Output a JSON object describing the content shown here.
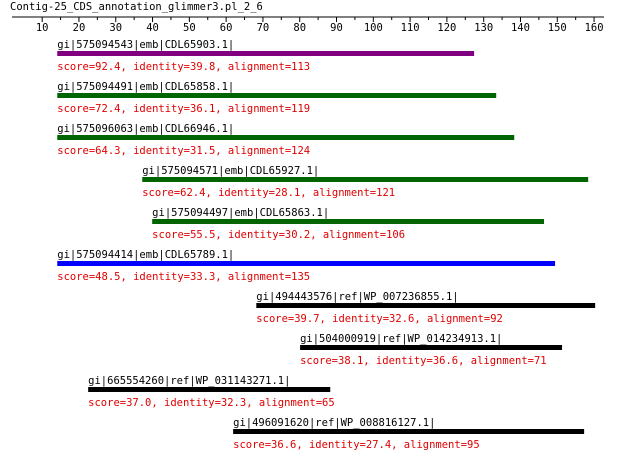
{
  "chart_data": {
    "type": "alignment",
    "title": "Contig-25_CDS_annotation_glimmer3.pl_2_6",
    "xlim": [
      1.8,
      162.7
    ],
    "xticks": [
      10,
      20,
      30,
      40,
      50,
      60,
      70,
      80,
      90,
      100,
      110,
      120,
      130,
      140,
      150,
      160
    ],
    "label_color": "#e00000",
    "hits": [
      {
        "name": "gi|575094543|emb|CDL65903.1|",
        "label": "score=92.4, identity=39.8, alignment=113",
        "start": 14.1,
        "end": 127.4,
        "color": "#800080"
      },
      {
        "name": "gi|575094491|emb|CDL65858.1|",
        "label": "score=72.4, identity=36.1, alignment=119",
        "start": 14.1,
        "end": 133.4,
        "color": "#006400"
      },
      {
        "name": "gi|575096063|emb|CDL66946.1|",
        "label": "score=64.3, identity=31.5, alignment=124",
        "start": 14.1,
        "end": 138.3,
        "color": "#006400"
      },
      {
        "name": "gi|575094571|emb|CDL65927.1|",
        "label": "score=62.4, identity=28.1, alignment=121",
        "start": 37.2,
        "end": 158.4,
        "color": "#006400"
      },
      {
        "name": "gi|575094497|emb|CDL65863.1|",
        "label": "score=55.5, identity=30.2, alignment=106",
        "start": 39.9,
        "end": 146.4,
        "color": "#006400"
      },
      {
        "name": "gi|575094414|emb|CDL65789.1|",
        "label": "score=48.5, identity=33.3, alignment=135",
        "start": 14.1,
        "end": 149.4,
        "color": "#0000ff"
      },
      {
        "name": "gi|494443576|ref|WP_007236855.1|",
        "label": "score=39.7, identity=32.6, alignment=92",
        "start": 68.2,
        "end": 160.3,
        "color": "#000000"
      },
      {
        "name": "gi|504000919|ref|WP_014234913.1|",
        "label": "score=38.1, identity=36.6, alignment=71",
        "start": 80.1,
        "end": 151.3,
        "color": "#000000"
      },
      {
        "name": "gi|665554260|ref|WP_031143271.1|",
        "label": "score=37.0, identity=32.3, alignment=65",
        "start": 22.5,
        "end": 88.3,
        "color": "#000000"
      },
      {
        "name": "gi|496091620|ref|WP_008816127.1|",
        "label": "score=36.6, identity=27.4, alignment=95",
        "start": 61.9,
        "end": 157.3,
        "color": "#000000"
      }
    ]
  }
}
